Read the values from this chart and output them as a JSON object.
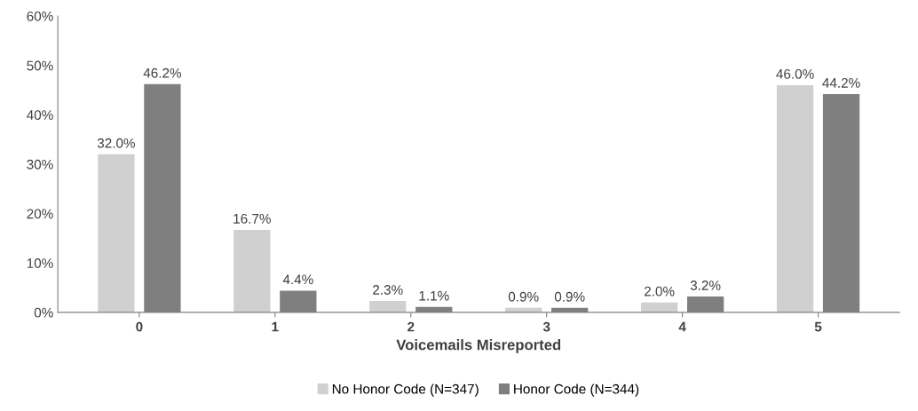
{
  "chart_data": {
    "type": "bar",
    "xlabel": "Voicemails Misreported",
    "categories": [
      "0",
      "1",
      "2",
      "3",
      "4",
      "5"
    ],
    "series": [
      {
        "name": "No Honor Code (N=347)",
        "color": "#d0d0d0",
        "values": [
          32.0,
          16.7,
          2.3,
          0.9,
          2.0,
          46.0
        ],
        "value_labels": [
          "32.0%",
          "16.7%",
          "2.3%",
          "0.9%",
          "2.0%",
          "46.0%"
        ]
      },
      {
        "name": "Honor Code (N=344)",
        "color": "#7f7f7f",
        "values": [
          46.2,
          4.4,
          1.1,
          0.9,
          3.2,
          44.2
        ],
        "value_labels": [
          "46.2%",
          "4.4%",
          "1.1%",
          "0.9%",
          "3.2%",
          "44.2%"
        ]
      }
    ],
    "ylim": [
      0,
      60
    ],
    "yticks": [
      {
        "value": 0,
        "label": "0%"
      },
      {
        "value": 10,
        "label": "10%"
      },
      {
        "value": 20,
        "label": "20%"
      },
      {
        "value": 30,
        "label": "30%"
      },
      {
        "value": 40,
        "label": "40%"
      },
      {
        "value": 50,
        "label": "50%"
      },
      {
        "value": 60,
        "label": "60%"
      }
    ],
    "grid": false,
    "legend": "bottom"
  }
}
